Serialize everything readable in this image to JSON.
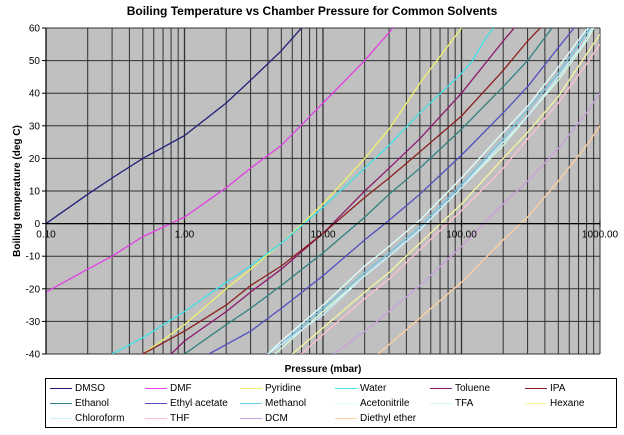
{
  "chart_data": {
    "type": "line",
    "title": "Boiling Temperature vs Chamber Pressure for Common Solvents",
    "xlabel": "Pressure (mbar)",
    "ylabel": "Boiling temperature (deg C)",
    "xscale": "log",
    "xlim": [
      0.1,
      1000
    ],
    "ylim": [
      -40,
      60
    ],
    "x_tick_labels": [
      "0.10",
      "1.00",
      "10.00",
      "100.00",
      "1000.00"
    ],
    "y_tick_labels": [
      "60",
      "50",
      "40",
      "30",
      "20",
      "10",
      "0",
      "-10",
      "-20",
      "-30",
      "-40"
    ],
    "grid": true,
    "plot_background": "#c0c0c0",
    "legend_position": "bottom",
    "series": [
      {
        "name": "DMSO",
        "color": "#1f1f7a",
        "points": [
          [
            0.1,
            0
          ],
          [
            0.2,
            9
          ],
          [
            0.3,
            14
          ],
          [
            0.5,
            20
          ],
          [
            1,
            27
          ],
          [
            2,
            37
          ],
          [
            3,
            44
          ],
          [
            5,
            53
          ],
          [
            7,
            60
          ]
        ]
      },
      {
        "name": "DMF",
        "color": "#e040e0",
        "points": [
          [
            0.1,
            -21
          ],
          [
            0.2,
            -14
          ],
          [
            0.3,
            -10
          ],
          [
            0.5,
            -4
          ],
          [
            1,
            2
          ],
          [
            2,
            11
          ],
          [
            3,
            17
          ],
          [
            5,
            24
          ],
          [
            10,
            37
          ],
          [
            20,
            50
          ],
          [
            32,
            60
          ]
        ]
      },
      {
        "name": "Pyridine",
        "color": "#f0f070",
        "points": [
          [
            0.5,
            -40
          ],
          [
            1,
            -31
          ],
          [
            2,
            -20
          ],
          [
            3,
            -14
          ],
          [
            5,
            -6
          ],
          [
            10,
            6
          ],
          [
            20,
            20
          ],
          [
            30,
            29
          ],
          [
            50,
            43
          ],
          [
            100,
            60
          ]
        ]
      },
      {
        "name": "Water",
        "color": "#40e0e8",
        "points": [
          [
            0.3,
            -40
          ],
          [
            0.5,
            -35
          ],
          [
            1,
            -27
          ],
          [
            2,
            -18
          ],
          [
            3,
            -13
          ],
          [
            5,
            -6
          ],
          [
            10,
            5
          ],
          [
            20,
            17
          ],
          [
            30,
            24
          ],
          [
            50,
            34
          ],
          [
            100,
            46
          ],
          [
            120,
            50
          ],
          [
            150,
            57
          ],
          [
            170,
            60
          ]
        ]
      },
      {
        "name": "Toluene",
        "color": "#8a1a6a",
        "points": [
          [
            0.8,
            -40
          ],
          [
            1,
            -36
          ],
          [
            2,
            -27
          ],
          [
            3,
            -21
          ],
          [
            5,
            -14
          ],
          [
            10,
            -3
          ],
          [
            20,
            10
          ],
          [
            30,
            17
          ],
          [
            50,
            26
          ],
          [
            100,
            40
          ],
          [
            200,
            56
          ],
          [
            240,
            60
          ]
        ]
      },
      {
        "name": "IPA",
        "color": "#8a2020",
        "points": [
          [
            0.5,
            -40
          ],
          [
            1,
            -33
          ],
          [
            2,
            -25
          ],
          [
            3,
            -19
          ],
          [
            5,
            -13
          ],
          [
            10,
            -3
          ],
          [
            20,
            8
          ],
          [
            30,
            14
          ],
          [
            50,
            22
          ],
          [
            100,
            33
          ],
          [
            200,
            47
          ],
          [
            300,
            56
          ],
          [
            370,
            60
          ]
        ]
      },
      {
        "name": "Ethanol",
        "color": "#308080",
        "points": [
          [
            1,
            -40
          ],
          [
            2,
            -31
          ],
          [
            3,
            -26
          ],
          [
            5,
            -19
          ],
          [
            10,
            -9
          ],
          [
            20,
            2
          ],
          [
            30,
            9
          ],
          [
            50,
            17
          ],
          [
            100,
            29
          ],
          [
            200,
            42
          ],
          [
            300,
            50
          ],
          [
            450,
            60
          ]
        ]
      },
      {
        "name": "Ethyl acetate",
        "color": "#5050c0",
        "points": [
          [
            1.5,
            -40
          ],
          [
            3,
            -33
          ],
          [
            5,
            -26
          ],
          [
            10,
            -16
          ],
          [
            20,
            -5
          ],
          [
            30,
            1
          ],
          [
            50,
            9
          ],
          [
            100,
            21
          ],
          [
            200,
            34
          ],
          [
            300,
            42
          ],
          [
            500,
            54
          ],
          [
            650,
            60
          ]
        ]
      },
      {
        "name": "Methanol",
        "color": "#70c8e8",
        "points": [
          [
            4,
            -40
          ],
          [
            5,
            -37
          ],
          [
            10,
            -26
          ],
          [
            20,
            -15
          ],
          [
            30,
            -9
          ],
          [
            50,
            -1
          ],
          [
            100,
            12
          ],
          [
            200,
            26
          ],
          [
            300,
            35
          ],
          [
            500,
            46
          ],
          [
            700,
            55
          ],
          [
            850,
            60
          ]
        ]
      },
      {
        "name": "Acetonitrile",
        "color": "#e0ffff",
        "points": [
          [
            4,
            -40
          ],
          [
            5,
            -36
          ],
          [
            10,
            -25
          ],
          [
            20,
            -13
          ],
          [
            30,
            -7
          ],
          [
            50,
            1
          ],
          [
            100,
            14
          ],
          [
            200,
            28
          ],
          [
            300,
            36
          ],
          [
            500,
            48
          ],
          [
            750,
            58
          ],
          [
            820,
            60
          ]
        ]
      },
      {
        "name": "TFA",
        "color": "#d0ffe0",
        "points": [
          [
            4.5,
            -40
          ],
          [
            10,
            -27
          ],
          [
            20,
            -16
          ],
          [
            30,
            -10
          ],
          [
            50,
            -2
          ],
          [
            100,
            11
          ],
          [
            200,
            24
          ],
          [
            300,
            33
          ],
          [
            500,
            44
          ],
          [
            800,
            56
          ],
          [
            900,
            60
          ]
        ]
      },
      {
        "name": "Hexane",
        "color": "#f8f4a0",
        "points": [
          [
            6,
            -40
          ],
          [
            10,
            -32
          ],
          [
            20,
            -21
          ],
          [
            30,
            -15
          ],
          [
            50,
            -6
          ],
          [
            100,
            6
          ],
          [
            200,
            20
          ],
          [
            300,
            28
          ],
          [
            500,
            39
          ],
          [
            800,
            52
          ],
          [
            1000,
            58
          ]
        ]
      },
      {
        "name": "Chloroform",
        "color": "#c8f0ff",
        "points": [
          [
            4,
            -40
          ],
          [
            10,
            -28
          ],
          [
            20,
            -16
          ],
          [
            30,
            -10
          ],
          [
            50,
            -2
          ],
          [
            100,
            11
          ],
          [
            200,
            25
          ],
          [
            300,
            33
          ],
          [
            500,
            45
          ],
          [
            750,
            55
          ],
          [
            880,
            60
          ]
        ]
      },
      {
        "name": "THF",
        "color": "#ffc0d0",
        "points": [
          [
            7,
            -40
          ],
          [
            10,
            -34
          ],
          [
            20,
            -23
          ],
          [
            30,
            -17
          ],
          [
            50,
            -8
          ],
          [
            100,
            4
          ],
          [
            200,
            17
          ],
          [
            300,
            26
          ],
          [
            500,
            37
          ],
          [
            800,
            49
          ],
          [
            1000,
            55
          ]
        ]
      },
      {
        "name": "DCM",
        "color": "#c8a0e0",
        "points": [
          [
            12,
            -40
          ],
          [
            20,
            -33
          ],
          [
            30,
            -27
          ],
          [
            50,
            -19
          ],
          [
            100,
            -7
          ],
          [
            200,
            6
          ],
          [
            300,
            13
          ],
          [
            500,
            23
          ],
          [
            800,
            34
          ],
          [
            1000,
            40
          ]
        ]
      },
      {
        "name": "Diethyl ether",
        "color": "#ffd0a0",
        "points": [
          [
            25,
            -40
          ],
          [
            50,
            -29
          ],
          [
            100,
            -18
          ],
          [
            200,
            -5
          ],
          [
            300,
            2
          ],
          [
            500,
            13
          ],
          [
            800,
            24
          ],
          [
            1000,
            30
          ]
        ]
      }
    ]
  },
  "legend": {
    "items": [
      {
        "label": "DMSO",
        "color": "#1f1f7a"
      },
      {
        "label": "DMF",
        "color": "#e040e0"
      },
      {
        "label": "Pyridine",
        "color": "#f0f070"
      },
      {
        "label": "Water",
        "color": "#40e0e8"
      },
      {
        "label": "Toluene",
        "color": "#8a1a6a"
      },
      {
        "label": "IPA",
        "color": "#8a2020"
      },
      {
        "label": "Ethanol",
        "color": "#308080"
      },
      {
        "label": "Ethyl acetate",
        "color": "#5050c0"
      },
      {
        "label": "Methanol",
        "color": "#70c8e8"
      },
      {
        "label": "Acetonitrile",
        "color": "#e0ffff"
      },
      {
        "label": "TFA",
        "color": "#d0ffe0"
      },
      {
        "label": "Hexane",
        "color": "#f8f4a0"
      },
      {
        "label": "Chloroform",
        "color": "#c8f0ff"
      },
      {
        "label": "THF",
        "color": "#ffc0d0"
      },
      {
        "label": "DCM",
        "color": "#c8a0e0"
      },
      {
        "label": "Diethyl ether",
        "color": "#ffd0a0"
      }
    ]
  }
}
